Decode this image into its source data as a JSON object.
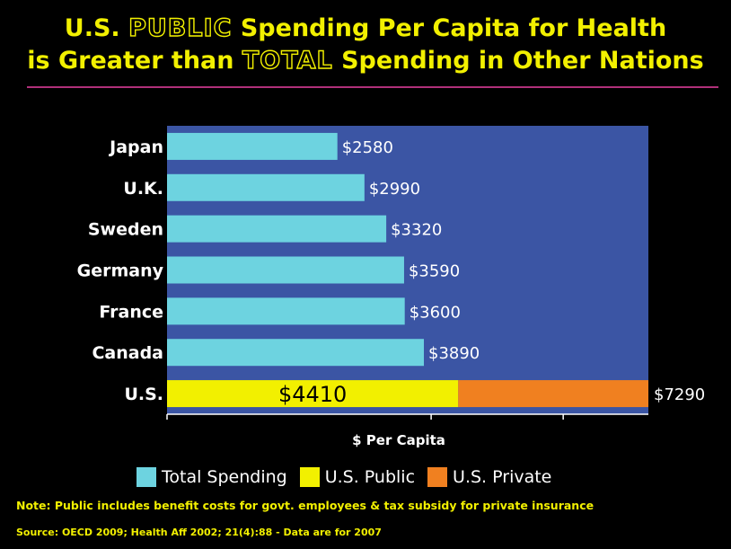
{
  "title": {
    "line1_pre": "U.S. ",
    "line1_emph": "PUBLIC",
    "line1_post": " Spending Per Capita for Health",
    "line2_pre": "is Greater than ",
    "line2_emph": "TOTAL",
    "line2_post": " Spending in Other Nations"
  },
  "chart_data": {
    "type": "bar",
    "orientation": "horizontal",
    "categories": [
      "Japan",
      "U.K.",
      "Sweden",
      "Germany",
      "France",
      "Canada",
      "U.S."
    ],
    "series": [
      {
        "name": "Total Spending",
        "color": "#6dd3e0",
        "values": [
          2580,
          2990,
          3320,
          3590,
          3600,
          3890,
          null
        ]
      },
      {
        "name": "U.S. Public",
        "color": "#f2f000",
        "values": [
          null,
          null,
          null,
          null,
          null,
          null,
          4410
        ]
      },
      {
        "name": "U.S. Private",
        "color": "#f08020",
        "values": [
          null,
          null,
          null,
          null,
          null,
          null,
          2880
        ]
      }
    ],
    "data_labels": [
      "$2580",
      "$2990",
      "$3320",
      "$3590",
      "$3600",
      "$3890",
      "$4410"
    ],
    "us_total_label": "$7290",
    "xlabel": "$ Per Capita",
    "xlim": [
      0,
      7290
    ],
    "x_ticks": [
      0,
      4000,
      6000
    ],
    "plot_background": "#3b55a4",
    "legend_position": "bottom"
  },
  "legend": {
    "total": "Total Spending",
    "public": "U.S. Public",
    "private": "U.S. Private"
  },
  "note": "Note: Public includes benefit costs for govt. employees & tax subsidy for private insurance",
  "source": "Source: OECD 2009; Health Aff 2002; 21(4):88 - Data are for 2007"
}
